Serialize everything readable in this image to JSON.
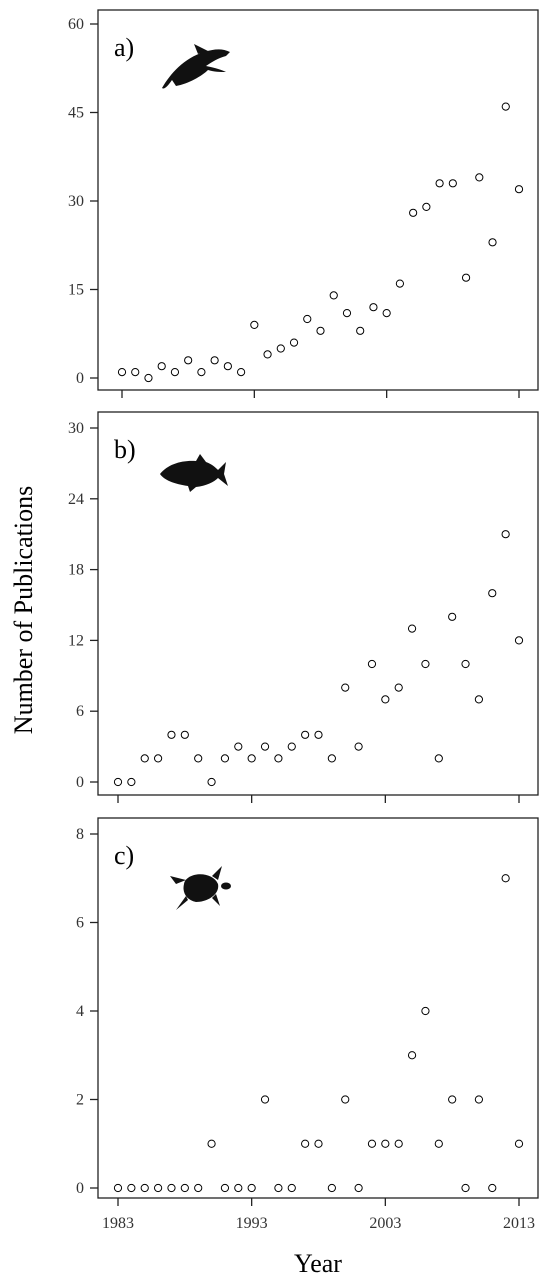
{
  "y_axis_title": "Number of Publications",
  "x_axis_title": "Year",
  "x_tick_labels": [
    "1983",
    "1993",
    "2003",
    "2013"
  ],
  "chart_data": [
    {
      "type": "scatter",
      "panel_label": "a)",
      "icon": "dolphin-icon",
      "xlim": [
        1983,
        2013
      ],
      "ylim": [
        0,
        60
      ],
      "y_ticks": [
        0,
        15,
        30,
        45,
        60
      ],
      "x_ticks": [
        1983,
        1993,
        2003,
        2013
      ],
      "series": [
        {
          "x": [
            1983,
            1984,
            1985,
            1986,
            1987,
            1988,
            1989,
            1990,
            1991,
            1992,
            1993,
            1994,
            1995,
            1996,
            1997,
            1998,
            1999,
            2000,
            2001,
            2002,
            2003,
            2004,
            2005,
            2006,
            2007,
            2008,
            2009,
            2010,
            2011,
            2012,
            2013
          ],
          "y": [
            1,
            1,
            0,
            2,
            1,
            3,
            1,
            3,
            2,
            1,
            9,
            4,
            5,
            6,
            10,
            8,
            14,
            11,
            8,
            12,
            11,
            16,
            28,
            29,
            33,
            33,
            17,
            34,
            23,
            46,
            32
          ]
        }
      ]
    },
    {
      "type": "scatter",
      "panel_label": "b)",
      "icon": "fish-icon",
      "xlim": [
        1983,
        2013
      ],
      "ylim": [
        0,
        30
      ],
      "y_ticks": [
        0,
        6,
        12,
        18,
        24,
        30
      ],
      "x_ticks": [
        1983,
        1993,
        2003,
        2013
      ],
      "series": [
        {
          "x": [
            1983,
            1984,
            1985,
            1986,
            1987,
            1988,
            1989,
            1990,
            1991,
            1992,
            1993,
            1994,
            1995,
            1996,
            1997,
            1998,
            1999,
            2000,
            2001,
            2002,
            2003,
            2004,
            2005,
            2006,
            2007,
            2008,
            2009,
            2010,
            2011,
            2012,
            2013
          ],
          "y": [
            0,
            0,
            2,
            2,
            4,
            4,
            2,
            0,
            2,
            3,
            2,
            3,
            2,
            3,
            4,
            4,
            2,
            8,
            3,
            10,
            7,
            8,
            13,
            10,
            2,
            14,
            10,
            7,
            16,
            21,
            12
          ]
        }
      ]
    },
    {
      "type": "scatter",
      "panel_label": "c)",
      "icon": "turtle-icon",
      "xlim": [
        1983,
        2013
      ],
      "ylim": [
        0,
        8
      ],
      "y_ticks": [
        0,
        2,
        4,
        6,
        8
      ],
      "x_ticks": [
        1983,
        1993,
        2003,
        2013
      ],
      "series": [
        {
          "x": [
            1983,
            1984,
            1985,
            1986,
            1987,
            1988,
            1989,
            1990,
            1991,
            1992,
            1993,
            1994,
            1995,
            1996,
            1997,
            1998,
            1999,
            2000,
            2001,
            2002,
            2003,
            2004,
            2005,
            2006,
            2007,
            2008,
            2009,
            2010,
            2011,
            2012,
            2013
          ],
          "y": [
            0,
            0,
            0,
            0,
            0,
            0,
            0,
            1,
            0,
            0,
            0,
            2,
            0,
            0,
            1,
            1,
            0,
            2,
            0,
            1,
            1,
            1,
            3,
            4,
            1,
            2,
            0,
            2,
            0,
            7,
            1
          ]
        }
      ]
    }
  ]
}
